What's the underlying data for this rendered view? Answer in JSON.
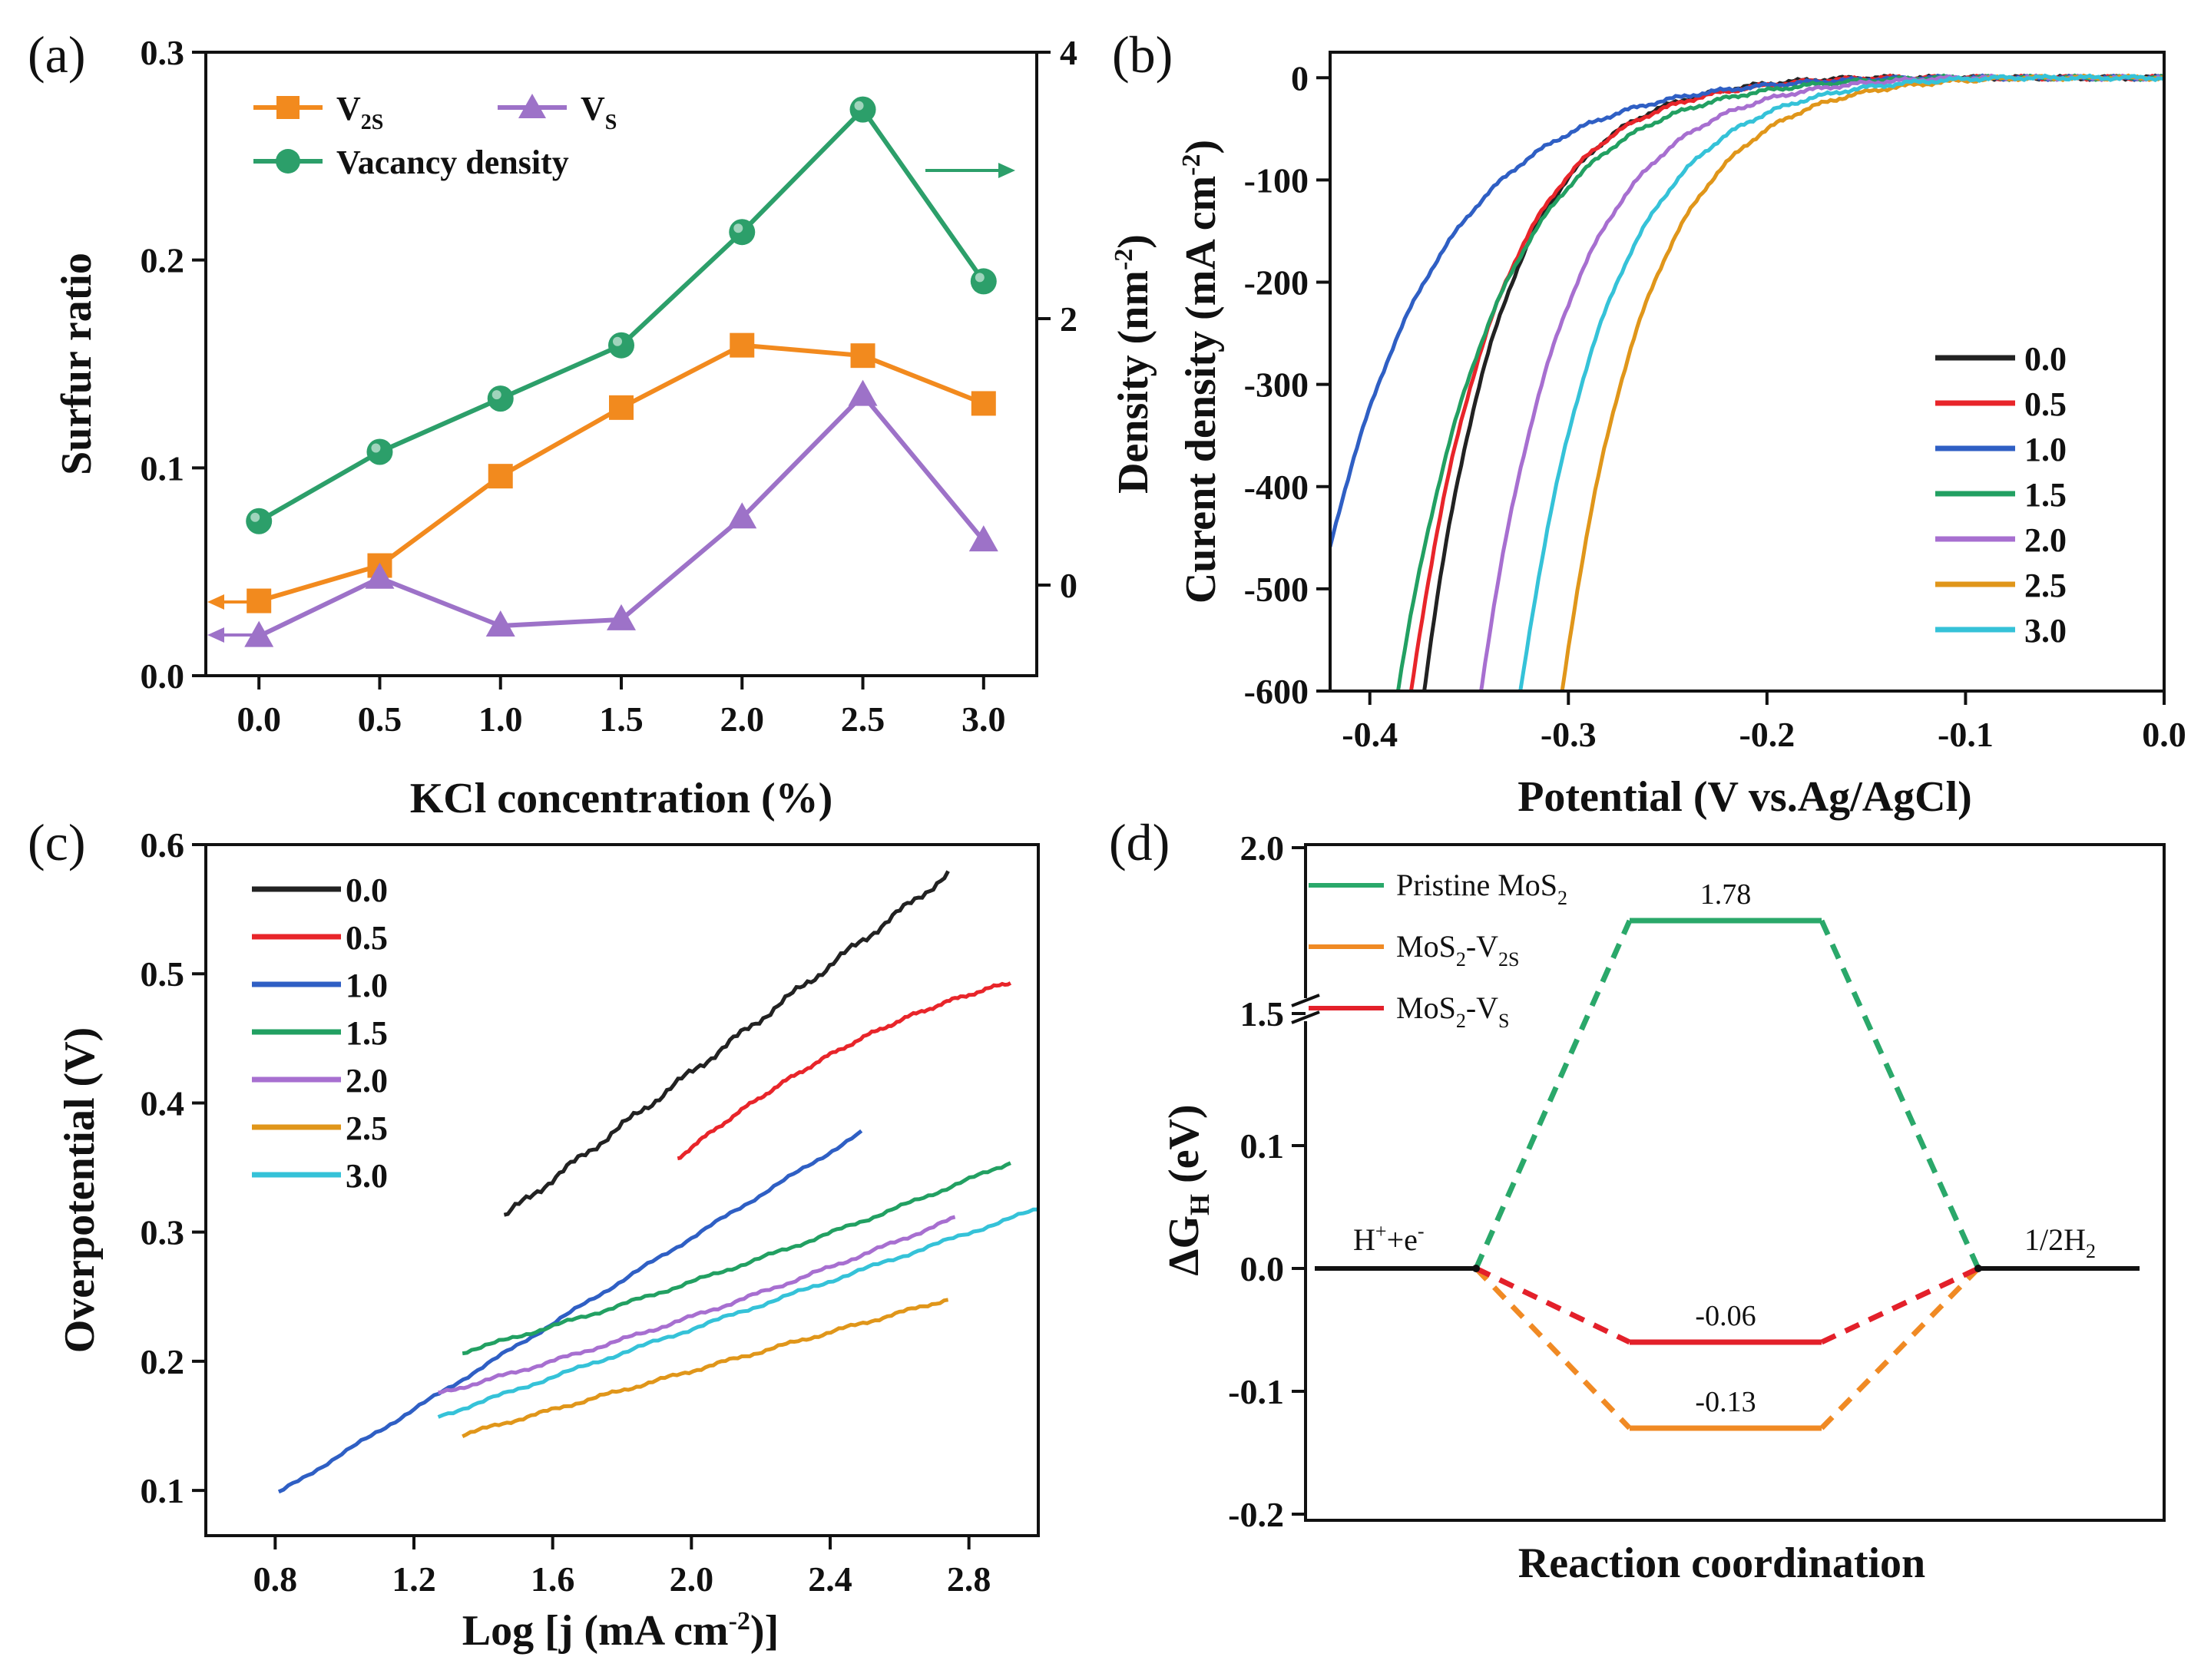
{
  "colors": {
    "black": "#222222",
    "red": "#e8252a",
    "blue": "#2f5fc4",
    "green": "#22a062",
    "purple": "#a76fd0",
    "orange": "#e0961a",
    "cyan": "#35c2d8",
    "a_orange": "#f28a1e",
    "a_purple": "#9d72c8",
    "a_green": "#2c9f6a",
    "d_green": "#2aa86a",
    "d_orange": "#f08a24",
    "d_red": "#e3202a"
  },
  "chart_data": [
    {
      "panel": "(a)",
      "type": "line",
      "xlabel": "KCl concentration (%)",
      "ylabel": "Surfur ratio",
      "y2label_main": "Density (nm",
      "y2label_sup": "-2",
      "y2label_close": ")",
      "x": [
        0.0,
        0.5,
        1.0,
        1.5,
        2.0,
        2.5,
        3.0
      ],
      "xticks": [
        "0.0",
        "0.5",
        "1.0",
        "1.5",
        "2.0",
        "2.5",
        "3.0"
      ],
      "xlim": [
        -0.22,
        3.22
      ],
      "ylim": [
        0,
        0.3
      ],
      "yticks": [
        "0.0",
        "0.1",
        "0.2",
        "0.3"
      ],
      "y2lim": [
        -0.68,
        4.0
      ],
      "y2ticks": [
        "0",
        "2",
        "4"
      ],
      "series": [
        {
          "name": "V2S",
          "label_main": "V",
          "label_sub": "2S",
          "axis": "left",
          "marker": "square",
          "values": [
            0.036,
            0.053,
            0.096,
            0.129,
            0.159,
            0.154,
            0.131
          ]
        },
        {
          "name": "VS",
          "label_main": "V",
          "label_sub": "S",
          "axis": "left",
          "marker": "triangle",
          "values": [
            0.019,
            0.047,
            0.024,
            0.027,
            0.076,
            0.135,
            0.065
          ]
        },
        {
          "name": "Vacancy density",
          "label_main": "Vacancy density",
          "label_sub": "",
          "axis": "right",
          "marker": "circle",
          "values": [
            0.48,
            1.0,
            1.4,
            1.8,
            2.65,
            3.57,
            2.28
          ]
        }
      ]
    },
    {
      "panel": "(b)",
      "type": "line",
      "xlabel": "Potential (V vs.Ag/AgCl)",
      "ylabel_main": "Curent density (mA cm",
      "ylabel_sup": "-2",
      "ylabel_close": ")",
      "xlim": [
        -0.42,
        0.0
      ],
      "xticks": [
        "-0.4",
        "-0.3",
        "-0.2",
        "-0.1",
        "0.0"
      ],
      "ylim": [
        -600,
        25
      ],
      "yticks": [
        "0",
        "-100",
        "-200",
        "-300",
        "-400",
        "-500",
        "-600"
      ],
      "series": [
        {
          "name": "0.0",
          "onset": -0.15,
          "k": 0.0406,
          "endx": -0.42
        },
        {
          "name": "0.5",
          "onset": -0.14,
          "k": 0.0436,
          "endx": -0.42
        },
        {
          "name": "1.0",
          "onset": -0.12,
          "k": 0.0575,
          "endx": -0.42
        },
        {
          "name": "1.5",
          "onset": -0.11,
          "k": 0.0503,
          "endx": -0.42
        },
        {
          "name": "2.0",
          "onset": -0.1,
          "k": 0.0445,
          "endx": -0.42
        },
        {
          "name": "2.5",
          "onset": -0.07,
          "k": 0.0425,
          "endx": -0.42
        },
        {
          "name": "3.0",
          "onset": -0.08,
          "k": 0.0445,
          "endx": -0.42
        }
      ]
    },
    {
      "panel": "(c)",
      "type": "line",
      "xlabel_main": "Log [j (mA cm",
      "xlabel_sup": "-2",
      "xlabel_close": ")]",
      "ylabel": "Overpotential (V)",
      "xlim": [
        0.6,
        3.0
      ],
      "xticks": [
        "0.8",
        "1.2",
        "1.6",
        "2.0",
        "2.4",
        "2.8"
      ],
      "ylim": [
        0.065,
        0.6
      ],
      "yticks": [
        "0.1",
        "0.2",
        "0.3",
        "0.4",
        "0.5",
        "0.6"
      ],
      "series": [
        {
          "name": "0.0",
          "x": [
            1.46,
            2.74
          ],
          "y": [
            0.312,
            0.577
          ]
        },
        {
          "name": "0.5",
          "x": [
            1.96,
            2.92
          ],
          "y": [
            0.357,
            0.493
          ]
        },
        {
          "name": "1.0",
          "x": [
            0.81,
            2.49
          ],
          "y": [
            0.098,
            0.377
          ]
        },
        {
          "name": "1.5",
          "x": [
            1.34,
            2.92
          ],
          "y": [
            0.207,
            0.354
          ]
        },
        {
          "name": "2.0",
          "x": [
            1.27,
            2.76
          ],
          "y": [
            0.175,
            0.311
          ]
        },
        {
          "name": "2.5",
          "x": [
            1.34,
            2.74
          ],
          "y": [
            0.143,
            0.248
          ]
        },
        {
          "name": "3.0",
          "x": [
            1.27,
            3.0
          ],
          "y": [
            0.157,
            0.318
          ]
        }
      ]
    },
    {
      "panel": "(d)",
      "type": "line",
      "xlabel": "Reaction coordination",
      "ylabel_main": "ΔG",
      "ylabel_sub": "H",
      "ylabel_close": " (eV)",
      "yticks_low": [
        "0.1",
        "0.0",
        "-0.1",
        "-0.2"
      ],
      "yticks_high": [
        "1.5",
        "2.0"
      ],
      "ylim_low": [
        -0.2,
        0.1
      ],
      "ylim_high": [
        1.5,
        2.0
      ],
      "states": {
        "start": "H+ + e-",
        "end": "1/2H2"
      },
      "state_start_main": "H",
      "state_start_sup1": "+",
      "state_start_mid": "+e",
      "state_start_sup2": "-",
      "state_end_main": "1/2H",
      "state_end_sub": "2",
      "series": [
        {
          "name": "Pristine MoS2",
          "label_main": "Pristine MoS",
          "label_sub": "2",
          "label_tail": "",
          "dG": 1.78,
          "label": "1.78"
        },
        {
          "name": "MoS2-V2S",
          "label_main": "MoS",
          "label_sub": "2",
          "label_tail": "-V",
          "label_sub2": "2S",
          "dG": -0.13,
          "label": "-0.13"
        },
        {
          "name": "MoS2-VS",
          "label_main": "MoS",
          "label_sub": "2",
          "label_tail": "-V",
          "label_sub2": "S",
          "dG": -0.06,
          "label": "-0.06"
        }
      ]
    }
  ]
}
